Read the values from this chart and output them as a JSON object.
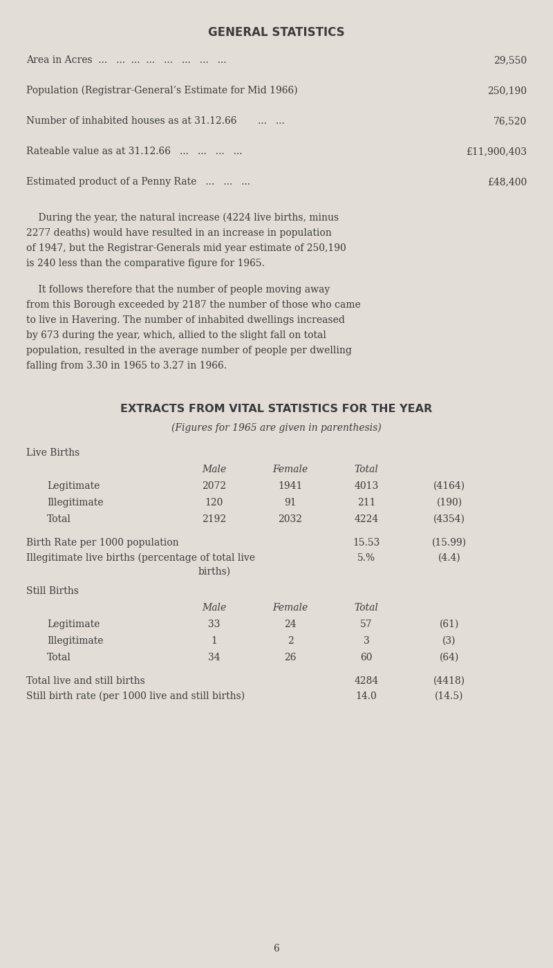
{
  "bg_color": "#e2ddd6",
  "text_color": "#3a3a3a",
  "title1": "GENERAL STATISTICS",
  "title2": "EXTRACTS FROM VITAL STATISTICS FOR THE YEAR",
  "subtitle2": "(Figures for 1965 are given in parenthesis)",
  "general_stats": [
    {
      "label": "Area in Acres  ...   ...  ...  ...   ...   ...   ...   ...",
      "value": "29,550"
    },
    {
      "label": "Population (Registrar-General’s Estimate for Mid 1966)",
      "value": "250,190"
    },
    {
      "label": "Number of inhabited houses as at 31.12.66       ...   ...",
      "value": "76,520"
    },
    {
      "label": "Rateable value as at 31.12.66   ...   ...   ...   ...",
      "value": "£11,900,403"
    },
    {
      "label": "Estimated product of a Penny Rate   ...   ...   ...",
      "value": "£48,400"
    }
  ],
  "para1_lines": [
    "    During the year, the natural increase (4224 live births, minus",
    "2277 deaths) would have resulted in an increase in population",
    "of 1947, but the Registrar-Generals mid year estimate of 250,190",
    "is 240 less than the comparative figure for 1965."
  ],
  "para2_lines": [
    "    It follows therefore that the number of people moving away",
    "from this Borough exceeded by 2187 the number of those who came",
    "to live in Havering. The number of inhabited dwellings increased",
    "by 673 during the year, which, allied to the slight fall on total",
    "population, resulted in the average number of people per dwelling",
    "falling from 3.30 in 1965 to 3.27 in 1966."
  ],
  "live_births_header": "Live Births",
  "live_births_col_headers": [
    "Male",
    "Female",
    "Total"
  ],
  "live_births_rows": [
    [
      "Legitimate",
      "2072",
      "1941",
      "4013",
      "(4164)"
    ],
    [
      "Illegitimate",
      "120",
      "91",
      "211",
      "(190)"
    ],
    [
      "Total",
      "2192",
      "2032",
      "4224",
      "(4354)"
    ]
  ],
  "birth_rate_label": "Birth Rate per 1000 population",
  "birth_rate_value": "15.53",
  "birth_rate_prev": "(15.99)",
  "illegit_label": "Illegitimate live births (percentage of total live",
  "illegit_label2": "births)",
  "illegit_value": "5.%",
  "illegit_prev": "(4.4)",
  "still_births_header": "Still Births",
  "still_births_col_headers": [
    "Male",
    "Female",
    "Total"
  ],
  "still_births_rows": [
    [
      "Legitimate",
      "33",
      "24",
      "57",
      "(61)"
    ],
    [
      "Illegitimate",
      "1",
      "2",
      "3",
      "(3)"
    ],
    [
      "Total",
      "34",
      "26",
      "60",
      "(64)"
    ]
  ],
  "total_live_still_label": "Total live and still births",
  "total_live_still_value": "4284",
  "total_live_still_prev": "(4418)",
  "still_birth_rate_label": "Still birth rate (per 1000 live and still births)",
  "still_birth_rate_value": "14.0",
  "still_birth_rate_prev": "(14.5)",
  "page_number": "6",
  "figw": 8.0,
  "figh": 14.0,
  "dpi": 100
}
